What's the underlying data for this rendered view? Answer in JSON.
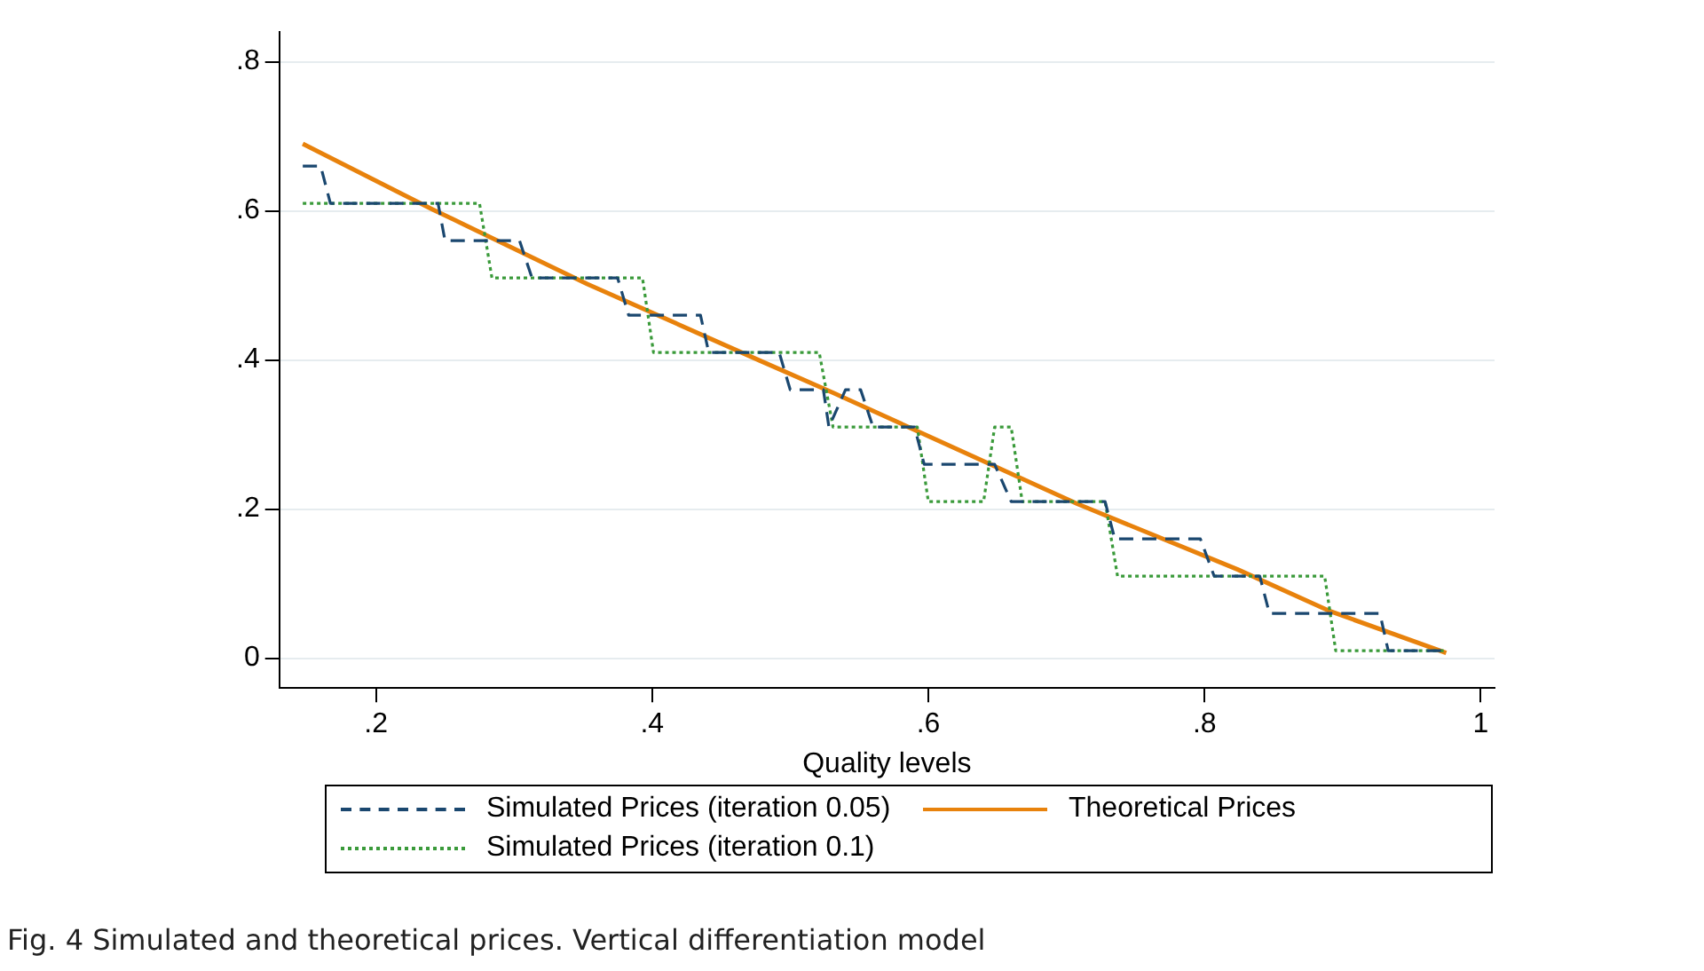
{
  "chart_data": {
    "type": "line",
    "xlabel": "Quality levels",
    "xlim": [
      0.13,
      1.01
    ],
    "xticks": [
      {
        "value": 0.2,
        "label": ".2"
      },
      {
        "value": 0.4,
        "label": ".4"
      },
      {
        "value": 0.6,
        "label": ".6"
      },
      {
        "value": 0.8,
        "label": ".8"
      },
      {
        "value": 1,
        "label": "1"
      }
    ],
    "ylim": [
      -0.04,
      0.84
    ],
    "yticks": [
      {
        "value": 0,
        "label": "0"
      },
      {
        "value": 0.2,
        "label": ".2"
      },
      {
        "value": 0.4,
        "label": ".4"
      },
      {
        "value": 0.6,
        "label": ".6"
      },
      {
        "value": 0.8,
        "label": ".8"
      }
    ],
    "grid": "y",
    "legend": "bottom",
    "marker": "none",
    "series": [
      {
        "name": "Simulated Prices (iteration 0.05)",
        "color": "#1a476f",
        "line_style": "dashed",
        "x": [
          0.147,
          0.16,
          0.167,
          0.245,
          0.25,
          0.304,
          0.313,
          0.375,
          0.383,
          0.435,
          0.441,
          0.492,
          0.5,
          0.524,
          0.528,
          0.54,
          0.551,
          0.56,
          0.59,
          0.597,
          0.648,
          0.66,
          0.728,
          0.735,
          0.797,
          0.807,
          0.84,
          0.847,
          0.927,
          0.933,
          0.975
        ],
        "values": [
          0.66,
          0.66,
          0.61,
          0.61,
          0.56,
          0.56,
          0.51,
          0.51,
          0.46,
          0.46,
          0.41,
          0.41,
          0.36,
          0.36,
          0.31,
          0.36,
          0.36,
          0.31,
          0.31,
          0.26,
          0.26,
          0.21,
          0.21,
          0.16,
          0.16,
          0.11,
          0.11,
          0.06,
          0.06,
          0.01,
          0.01
        ]
      },
      {
        "name": "Simulated Prices (iteration 0.1)",
        "color": "#3a9a3a",
        "line_style": "dotted",
        "x": [
          0.147,
          0.275,
          0.284,
          0.393,
          0.401,
          0.521,
          0.531,
          0.592,
          0.6,
          0.64,
          0.648,
          0.66,
          0.668,
          0.728,
          0.737,
          0.887,
          0.895,
          0.975
        ],
        "values": [
          0.61,
          0.61,
          0.51,
          0.51,
          0.41,
          0.41,
          0.31,
          0.31,
          0.21,
          0.21,
          0.31,
          0.31,
          0.21,
          0.21,
          0.11,
          0.11,
          0.01,
          0.01
        ]
      },
      {
        "name": "Theoretical Prices",
        "color": "#e8820c",
        "line_style": "solid",
        "x": [
          0.147,
          0.241,
          0.353,
          0.477,
          0.531,
          0.708,
          0.824,
          0.891,
          0.975
        ],
        "values": [
          0.69,
          0.602,
          0.502,
          0.4,
          0.356,
          0.207,
          0.119,
          0.063,
          0.007
        ]
      }
    ],
    "annotations": [
      "Fig. 4 Simulated and theoretical prices. Vertical differentiation model"
    ]
  }
}
